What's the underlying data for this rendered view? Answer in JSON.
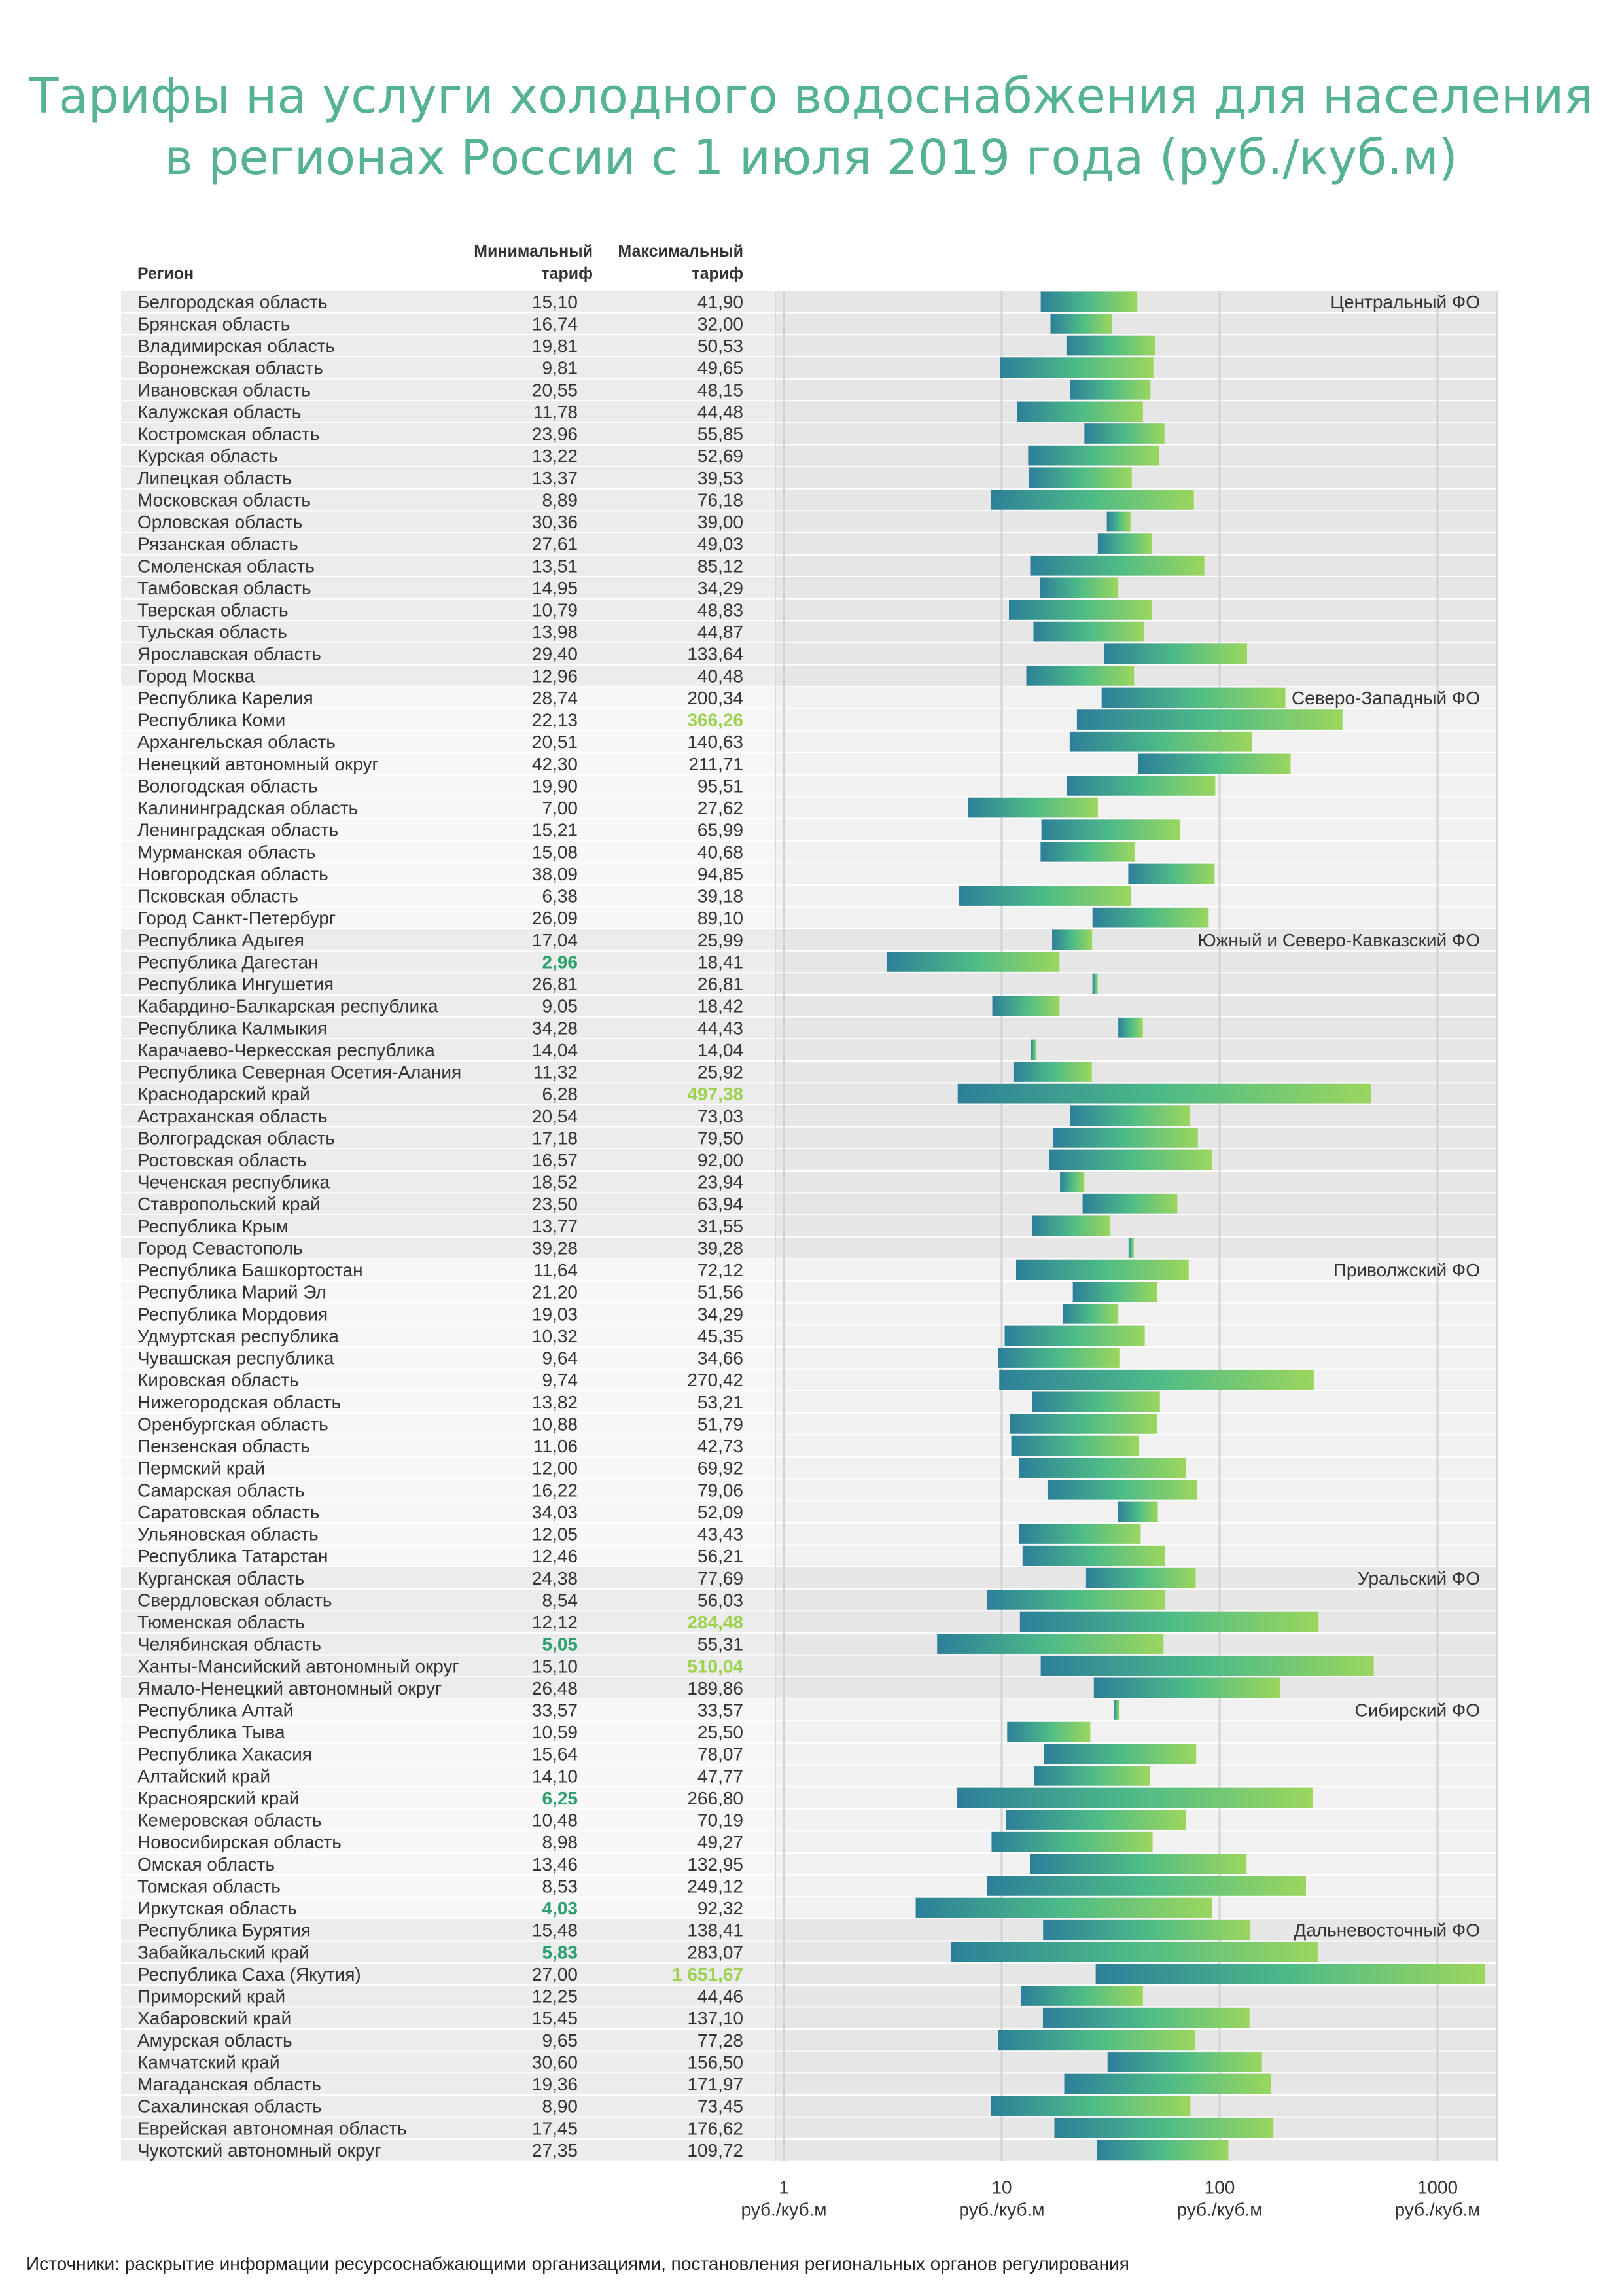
{
  "title_lines": [
    "Тарифы на услуги холодного водоснабжения для населения",
    "в регионах России с 1 июля 2019 года (руб./куб.м)"
  ],
  "source": "Источники: раскрытие информации ресурсоснабжающими организациями, постановления региональных органов регулирования",
  "colors": {
    "title": "#55b38f",
    "band_dark": "#ececec",
    "band_light": "#f7f7f7",
    "gradient_low": "#2d7f99",
    "gradient_mid": "#4dbb87",
    "gradient_high": "#9bd65e",
    "highlight_min": "#2aa06a",
    "highlight_max": "#9cd24f"
  },
  "chart_data": {
    "type": "bar",
    "subtype": "floating-range",
    "scale": "log",
    "xlim": [
      1,
      1000
    ],
    "x_ticks": [
      1,
      10,
      100,
      1000
    ],
    "x_tick_labels": [
      "1",
      "10",
      "100",
      "1000"
    ],
    "x_unit_label": "руб./куб.м",
    "grid": true,
    "columns": {
      "region": "Регион",
      "min": [
        "Минимальный",
        "тариф"
      ],
      "max": [
        "Максимальный",
        "тариф"
      ]
    },
    "groups": [
      {
        "name": "Центральный ФО",
        "rows": [
          {
            "region": "Белгородская область",
            "min": "15,10",
            "max": "41,90"
          },
          {
            "region": "Брянская область",
            "min": "16,74",
            "max": "32,00"
          },
          {
            "region": "Владимирская область",
            "min": "19,81",
            "max": "50,53"
          },
          {
            "region": "Воронежская область",
            "min": "9,81",
            "max": "49,65"
          },
          {
            "region": "Ивановская область",
            "min": "20,55",
            "max": "48,15"
          },
          {
            "region": "Калужская область",
            "min": "11,78",
            "max": "44,48"
          },
          {
            "region": "Костромская область",
            "min": "23,96",
            "max": "55,85"
          },
          {
            "region": "Курская область",
            "min": "13,22",
            "max": "52,69"
          },
          {
            "region": "Липецкая область",
            "min": "13,37",
            "max": "39,53"
          },
          {
            "region": "Московская область",
            "min": "8,89",
            "max": "76,18"
          },
          {
            "region": "Орловская область",
            "min": "30,36",
            "max": "39,00"
          },
          {
            "region": "Рязанская область",
            "min": "27,61",
            "max": "49,03"
          },
          {
            "region": "Смоленская область",
            "min": "13,51",
            "max": "85,12"
          },
          {
            "region": "Тамбовская область",
            "min": "14,95",
            "max": "34,29"
          },
          {
            "region": "Тверская область",
            "min": "10,79",
            "max": "48,83"
          },
          {
            "region": "Тульская область",
            "min": "13,98",
            "max": "44,87"
          },
          {
            "region": "Ярославская область",
            "min": "29,40",
            "max": "133,64"
          },
          {
            "region": "Город Москва",
            "min": "12,96",
            "max": "40,48"
          }
        ]
      },
      {
        "name": "Северо-Западный ФО",
        "rows": [
          {
            "region": "Республика Карелия",
            "min": "28,74",
            "max": "200,34"
          },
          {
            "region": "Республика Коми",
            "min": "22,13",
            "max": "366,26",
            "hl_max": true
          },
          {
            "region": "Архангельская область",
            "min": "20,51",
            "max": "140,63"
          },
          {
            "region": "Ненецкий автономный округ",
            "min": "42,30",
            "max": "211,71"
          },
          {
            "region": "Вологодская область",
            "min": "19,90",
            "max": "95,51"
          },
          {
            "region": "Калининградская область",
            "min": "7,00",
            "max": "27,62"
          },
          {
            "region": "Ленинградская область",
            "min": "15,21",
            "max": "65,99"
          },
          {
            "region": "Мурманская область",
            "min": "15,08",
            "max": "40,68"
          },
          {
            "region": "Новгородская область",
            "min": "38,09",
            "max": "94,85"
          },
          {
            "region": "Псковская область",
            "min": "6,38",
            "max": "39,18"
          },
          {
            "region": "Город Санкт-Петербург",
            "min": "26,09",
            "max": "89,10"
          }
        ]
      },
      {
        "name": "Южный и Северо-Кавказский ФО",
        "rows": [
          {
            "region": "Республика Адыгея",
            "min": "17,04",
            "max": "25,99"
          },
          {
            "region": "Республика Дагестан",
            "min": "2,96",
            "max": "18,41",
            "hl_min": true
          },
          {
            "region": "Республика Ингушетия",
            "min": "26,81",
            "max": "26,81"
          },
          {
            "region": "Кабардино-Балкарская республика",
            "min": "9,05",
            "max": "18,42"
          },
          {
            "region": "Республика Калмыкия",
            "min": "34,28",
            "max": "44,43"
          },
          {
            "region": "Карачаево-Черкесская республика",
            "min": "14,04",
            "max": "14,04"
          },
          {
            "region": "Республика Северная Осетия-Алания",
            "min": "11,32",
            "max": "25,92"
          },
          {
            "region": "Краснодарский край",
            "min": "6,28",
            "max": "497,38",
            "hl_max": true
          },
          {
            "region": "Астраханская область",
            "min": "20,54",
            "max": "73,03"
          },
          {
            "region": "Волгоградская область",
            "min": "17,18",
            "max": "79,50"
          },
          {
            "region": "Ростовская область",
            "min": "16,57",
            "max": "92,00"
          },
          {
            "region": "Чеченская республика",
            "min": "18,52",
            "max": "23,94"
          },
          {
            "region": "Ставропольский край",
            "min": "23,50",
            "max": "63,94"
          },
          {
            "region": "Республика Крым",
            "min": "13,77",
            "max": "31,55"
          },
          {
            "region": "Город Севастополь",
            "min": "39,28",
            "max": "39,28"
          }
        ]
      },
      {
        "name": "Приволжский ФО",
        "rows": [
          {
            "region": "Республика Башкортостан",
            "min": "11,64",
            "max": "72,12"
          },
          {
            "region": "Республика Марий Эл",
            "min": "21,20",
            "max": "51,56"
          },
          {
            "region": "Республика Мордовия",
            "min": "19,03",
            "max": "34,29"
          },
          {
            "region": "Удмуртская республика",
            "min": "10,32",
            "max": "45,35"
          },
          {
            "region": "Чувашская республика",
            "min": "9,64",
            "max": "34,66"
          },
          {
            "region": "Кировская область",
            "min": "9,74",
            "max": "270,42"
          },
          {
            "region": "Нижегородская область",
            "min": "13,82",
            "max": "53,21"
          },
          {
            "region": "Оренбургская область",
            "min": "10,88",
            "max": "51,79"
          },
          {
            "region": "Пензенская область",
            "min": "11,06",
            "max": "42,73"
          },
          {
            "region": "Пермский край",
            "min": "12,00",
            "max": "69,92"
          },
          {
            "region": "Самарская область",
            "min": "16,22",
            "max": "79,06"
          },
          {
            "region": "Саратовская область",
            "min": "34,03",
            "max": "52,09"
          },
          {
            "region": "Ульяновская область",
            "min": "12,05",
            "max": "43,43"
          },
          {
            "region": "Республика Татарстан",
            "min": "12,46",
            "max": "56,21"
          }
        ]
      },
      {
        "name": "Уральский ФО",
        "rows": [
          {
            "region": "Курганская область",
            "min": "24,38",
            "max": "77,69"
          },
          {
            "region": "Свердловская область",
            "min": "8,54",
            "max": "56,03"
          },
          {
            "region": "Тюменская область",
            "min": "12,12",
            "max": "284,48",
            "hl_max": true
          },
          {
            "region": "Челябинская область",
            "min": "5,05",
            "max": "55,31",
            "hl_min": true
          },
          {
            "region": "Ханты-Мансийский автономный округ",
            "min": "15,10",
            "max": "510,04",
            "hl_max": true
          },
          {
            "region": "Ямало-Ненецкий автономный округ",
            "min": "26,48",
            "max": "189,86"
          }
        ]
      },
      {
        "name": "Сибирский ФО",
        "rows": [
          {
            "region": "Республика Алтай",
            "min": "33,57",
            "max": "33,57"
          },
          {
            "region": "Республика Тыва",
            "min": "10,59",
            "max": "25,50"
          },
          {
            "region": "Республика Хакасия",
            "min": "15,64",
            "max": "78,07"
          },
          {
            "region": "Алтайский край",
            "min": "14,10",
            "max": "47,77"
          },
          {
            "region": "Красноярский край",
            "min": "6,25",
            "max": "266,80",
            "hl_min": true
          },
          {
            "region": "Кемеровская область",
            "min": "10,48",
            "max": "70,19"
          },
          {
            "region": "Новосибирская область",
            "min": "8,98",
            "max": "49,27"
          },
          {
            "region": "Омская область",
            "min": "13,46",
            "max": "132,95"
          },
          {
            "region": "Томская область",
            "min": "8,53",
            "max": "249,12"
          },
          {
            "region": "Иркутская область",
            "min": "4,03",
            "max": "92,32",
            "hl_min": true
          }
        ]
      },
      {
        "name": "Дальневосточный ФО",
        "rows": [
          {
            "region": "Республика Бурятия",
            "min": "15,48",
            "max": "138,41"
          },
          {
            "region": "Забайкальский край",
            "min": "5,83",
            "max": "283,07",
            "hl_min": true
          },
          {
            "region": "Республика Саха (Якутия)",
            "min": "27,00",
            "max": "1 651,67",
            "hl_max": true
          },
          {
            "region": "Приморский край",
            "min": "12,25",
            "max": "44,46"
          },
          {
            "region": "Хабаровский край",
            "min": "15,45",
            "max": "137,10"
          },
          {
            "region": "Амурская область",
            "min": "9,65",
            "max": "77,28"
          },
          {
            "region": "Камчатский край",
            "min": "30,60",
            "max": "156,50"
          },
          {
            "region": "Магаданская область",
            "min": "19,36",
            "max": "171,97"
          },
          {
            "region": "Сахалинская область",
            "min": "8,90",
            "max": "73,45"
          },
          {
            "region": "Еврейская автономная область",
            "min": "17,45",
            "max": "176,62"
          },
          {
            "region": "Чукотский автономный округ",
            "min": "27,35",
            "max": "109,72"
          }
        ]
      }
    ]
  }
}
